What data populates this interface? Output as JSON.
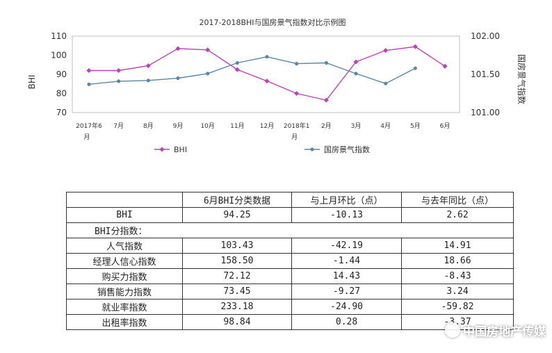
{
  "chart_data": {
    "type": "line",
    "title": "2017-2018BHI与国房景气指数对比示例图",
    "categories": [
      [
        "2017年6",
        "月"
      ],
      [
        "7月"
      ],
      [
        "8月"
      ],
      [
        "9月"
      ],
      [
        "10月"
      ],
      [
        "11月"
      ],
      [
        "12月"
      ],
      [
        "2018年1",
        "月"
      ],
      [
        "2月"
      ],
      [
        "3月"
      ],
      [
        "4月"
      ],
      [
        "5月"
      ],
      [
        "6月"
      ]
    ],
    "ylabel_left": "BHI",
    "ylabel_right": "国房景气指数",
    "ylim_left": [
      70,
      110
    ],
    "yticks_left": [
      "70",
      "80",
      "90",
      "100",
      "110"
    ],
    "ylim_right": [
      101.0,
      102.0
    ],
    "yticks_right": [
      "101.00",
      "101.50",
      "102.00"
    ],
    "grid": false,
    "legend_position": "bottom",
    "series": [
      {
        "name": "BHI",
        "axis": "left",
        "color": "#c040b8",
        "values": [
          92,
          92,
          94.5,
          103.5,
          102.8,
          92.5,
          86.5,
          80,
          76.5,
          96.5,
          102.5,
          104.5,
          94.25
        ]
      },
      {
        "name": "国房景气指数",
        "axis": "right",
        "color": "#5c87a6",
        "values": [
          101.37,
          101.41,
          101.42,
          101.45,
          101.51,
          101.65,
          101.73,
          101.64,
          101.65,
          101.51,
          101.38,
          101.58,
          null
        ]
      }
    ]
  },
  "table": {
    "headers": [
      "",
      "6月BHI分类数据",
      "与上月环比（点）",
      "与去年同比（点）"
    ],
    "rows": [
      [
        "BHI",
        "94.25",
        "-10.13",
        "2.62"
      ],
      [
        "BHI分指数：",
        "",
        "",
        ""
      ],
      [
        "人气指数",
        "103.43",
        "-42.19",
        "14.91"
      ],
      [
        "经理人信心指数",
        "158.50",
        "-1.44",
        "18.66"
      ],
      [
        "购买力指数",
        "72.12",
        "14.43",
        "-8.43"
      ],
      [
        "销售能力指数",
        "73.45",
        "-9.27",
        "3.24"
      ],
      [
        "就业率指数",
        "233.18",
        "-24.90",
        "-59.82"
      ],
      [
        "出租率指数",
        "98.84",
        "0.28",
        "-3.37"
      ]
    ]
  },
  "watermark": {
    "text": "中国房地产传媒"
  }
}
